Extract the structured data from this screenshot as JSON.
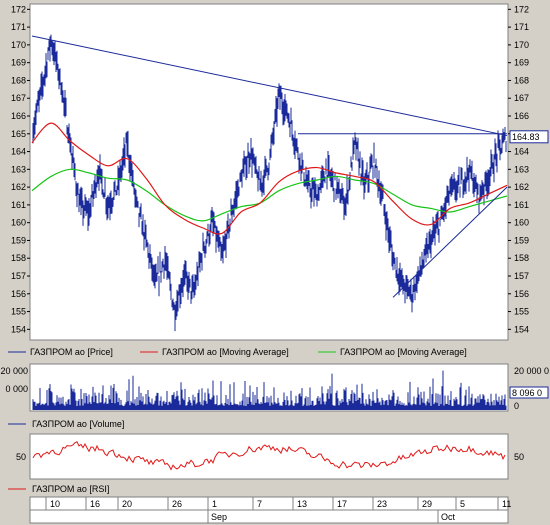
{
  "chart_data": [
    {
      "panel": "price",
      "type": "line",
      "title": "",
      "y_axis": {
        "ylim": [
          153.4,
          172.3
        ],
        "ticks": [
          154,
          155,
          156,
          157,
          158,
          159,
          160,
          161,
          162,
          163,
          164,
          165,
          166,
          167,
          168,
          169,
          170,
          171,
          172
        ]
      },
      "grid": false,
      "last_value_label": "164.83",
      "legend": [
        {
          "name": "ГАЗПРОМ ао [Price]",
          "color": "#1a2a9a"
        },
        {
          "name": "ГАЗПРОМ ао [Moving Average]",
          "color": "#e01818"
        },
        {
          "name": "ГАЗПРОМ ао [Moving Average]",
          "color": "#18c418"
        }
      ],
      "series": [
        {
          "name": "ГАЗПРОМ ао [Price]",
          "color": "#1a2a9a",
          "x": [
            0,
            2,
            4,
            6,
            8,
            10,
            12,
            14,
            16,
            18,
            20,
            22,
            24,
            26,
            28,
            30,
            32,
            34,
            36,
            38,
            40,
            42,
            44,
            46,
            48,
            50,
            52,
            54,
            56,
            58,
            60,
            62,
            64,
            66,
            68,
            70,
            72,
            74,
            76,
            78,
            80,
            82,
            84,
            86,
            88,
            90,
            92,
            94,
            96,
            98,
            100
          ],
          "values": [
            165,
            167.5,
            170.3,
            168,
            164.5,
            161,
            160.5,
            163,
            161,
            162,
            164.5,
            161,
            159,
            156.5,
            158,
            155,
            157,
            156,
            158.5,
            160,
            158,
            160.5,
            162.5,
            164,
            162,
            163.5,
            167.2,
            166,
            164,
            162,
            161.5,
            163,
            162,
            161,
            164.5,
            162,
            163.5,
            161,
            158,
            156.5,
            156,
            157.5,
            159,
            160,
            161.8,
            162,
            163,
            161.5,
            162.5,
            164,
            164.8
          ]
        },
        {
          "name": "ГАЗПРОМ ао [Moving Average]",
          "color": "#e01818",
          "x": [
            0,
            4,
            8,
            12,
            16,
            20,
            24,
            28,
            32,
            36,
            40,
            44,
            48,
            52,
            56,
            60,
            64,
            68,
            72,
            76,
            80,
            84,
            88,
            92,
            96,
            100
          ],
          "values": [
            164.5,
            165.6,
            164.6,
            163.8,
            163.2,
            163.6,
            162.5,
            161,
            160.2,
            159.7,
            159.4,
            160.6,
            161.1,
            162.3,
            162.9,
            163.1,
            162.8,
            162.6,
            162.3,
            161.2,
            160.2,
            159.9,
            160.8,
            161.1,
            161.6,
            162.1
          ]
        },
        {
          "name": "ГАЗПРОМ ао [Moving Average]",
          "color": "#18c418",
          "x": [
            0,
            4,
            8,
            12,
            16,
            20,
            24,
            28,
            32,
            36,
            40,
            44,
            48,
            52,
            56,
            60,
            64,
            68,
            72,
            76,
            80,
            84,
            88,
            92,
            96,
            100
          ],
          "values": [
            161.8,
            162.6,
            163,
            162.8,
            162.5,
            162.4,
            161.8,
            161,
            160.4,
            160.1,
            160.5,
            160.9,
            161.1,
            161.8,
            162.2,
            162.4,
            162.6,
            162.4,
            162.2,
            161.6,
            161,
            160.8,
            160.6,
            160.9,
            161.2,
            161.5
          ]
        }
      ],
      "annotations": [
        {
          "type": "trendline",
          "x": [
            0,
            100
          ],
          "y": [
            170.5,
            164.9
          ]
        },
        {
          "type": "hline",
          "x": [
            56,
            100
          ],
          "y": [
            165,
            165
          ]
        },
        {
          "type": "trendline",
          "x": [
            76,
            100
          ],
          "y": [
            155.8,
            162
          ]
        }
      ]
    },
    {
      "panel": "volume",
      "type": "bar",
      "y_axis": {
        "ticks_left": [
          "20 000",
          "0 000"
        ],
        "ticks_right": [
          "20 000 0",
          "0"
        ]
      },
      "last_value_label": "8 096 0",
      "legend": [
        {
          "name": "ГАЗПРОМ ао [Volume]",
          "color": "#1a2a9a"
        }
      ]
    },
    {
      "panel": "rsi",
      "type": "line",
      "y_axis": {
        "ticks": [
          "50"
        ]
      },
      "legend": [
        {
          "name": "ГАЗПРОМ ао [RSI]",
          "color": "#e01818"
        }
      ]
    },
    {
      "panel": "date-axis",
      "day_labels": [
        "10",
        "16",
        "20",
        "26",
        "1",
        "7",
        "13",
        "17",
        "23",
        "29",
        "5",
        "11"
      ],
      "month_labels": [
        "Sep",
        "Oct"
      ]
    }
  ]
}
